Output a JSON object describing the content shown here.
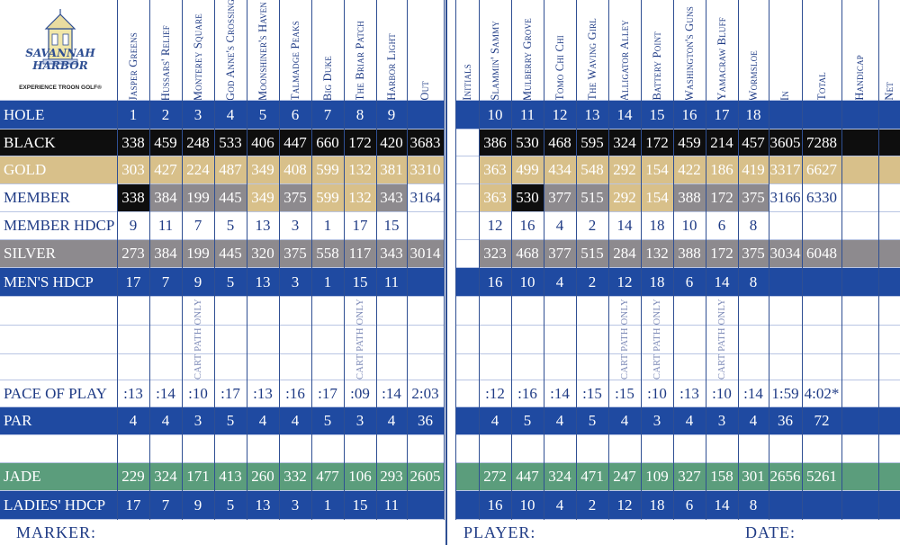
{
  "logo": {
    "brand": "SAVANNAH HARBOR",
    "tagline": "EXPERIENCE TROON GOLF®"
  },
  "colors": {
    "blue": "#1f4aa1",
    "black": "#0e0e0e",
    "gold": "#d8c08a",
    "silver": "#8d8a8e",
    "jade": "#5b9d7c",
    "headerText": "#1f3b85"
  },
  "front_headers": [
    "Jasper Greens",
    "Hussars' Relief",
    "Monterey Square",
    "God Anne's Crossing",
    "Moonshiner's Haven",
    "Talmadge Peaks",
    "Big Duke",
    "The Briar Patch",
    "Harbor Light",
    "Out"
  ],
  "back_headers": [
    "Initials",
    "Slammin' Sammy",
    "Mulberry Grove",
    "Tomo Chi Chi",
    "The Waving Girl",
    "Alligator Alley",
    "Battery Point",
    "Washington's Guns",
    "Yamacraw Bluff",
    "Wormsloe",
    "In",
    "Total",
    "Handicap",
    "Net"
  ],
  "rows": [
    {
      "label": "HOLE",
      "style": "blue",
      "front": [
        "1",
        "2",
        "3",
        "4",
        "5",
        "6",
        "7",
        "8",
        "9",
        ""
      ],
      "back": [
        "",
        "10",
        "11",
        "12",
        "13",
        "14",
        "15",
        "16",
        "17",
        "18",
        "",
        "",
        "",
        ""
      ]
    },
    {
      "label": "BLACK",
      "style": "black",
      "front": [
        "338",
        "459",
        "248",
        "533",
        "406",
        "447",
        "660",
        "172",
        "420",
        "3683"
      ],
      "back": [
        "",
        "386",
        "530",
        "468",
        "595",
        "324",
        "172",
        "459",
        "214",
        "457",
        "3605",
        "7288",
        "",
        ""
      ]
    },
    {
      "label": "GOLD",
      "style": "gold",
      "front": [
        "303",
        "427",
        "224",
        "487",
        "349",
        "408",
        "599",
        "132",
        "381",
        "3310"
      ],
      "back": [
        "",
        "363",
        "499",
        "434",
        "548",
        "292",
        "154",
        "422",
        "186",
        "419",
        "3317",
        "6627",
        "",
        ""
      ]
    },
    {
      "label": "MEMBER",
      "style": "member",
      "front": [
        "338",
        "384",
        "199",
        "445",
        "349",
        "375",
        "599",
        "132",
        "343",
        "3164"
      ],
      "back": [
        "",
        "363",
        "530",
        "377",
        "515",
        "292",
        "154",
        "388",
        "172",
        "375",
        "3166",
        "6330",
        "",
        ""
      ]
    },
    {
      "label": "MEMBER HDCP",
      "style": "white",
      "front": [
        "9",
        "11",
        "7",
        "5",
        "13",
        "3",
        "1",
        "17",
        "15",
        ""
      ],
      "back": [
        "",
        "12",
        "16",
        "4",
        "2",
        "14",
        "18",
        "10",
        "6",
        "8",
        "",
        "",
        "",
        ""
      ]
    },
    {
      "label": "SILVER",
      "style": "silver",
      "front": [
        "273",
        "384",
        "199",
        "445",
        "320",
        "375",
        "558",
        "117",
        "343",
        "3014"
      ],
      "back": [
        "",
        "323",
        "468",
        "377",
        "515",
        "284",
        "132",
        "388",
        "172",
        "375",
        "3034",
        "6048",
        "",
        ""
      ]
    },
    {
      "label": "MEN'S HDCP",
      "style": "blue",
      "front": [
        "17",
        "7",
        "9",
        "5",
        "13",
        "3",
        "1",
        "15",
        "11",
        ""
      ],
      "back": [
        "",
        "16",
        "10",
        "4",
        "2",
        "12",
        "18",
        "6",
        "14",
        "8",
        "",
        "",
        "",
        ""
      ]
    },
    {
      "label": "",
      "style": "white",
      "front": [
        "",
        "",
        "",
        "",
        "",
        "",
        "",
        "",
        "",
        ""
      ],
      "back": [
        "",
        "",
        "",
        "",
        "",
        "",
        "",
        "",
        "",
        "",
        "",
        "",
        "",
        ""
      ]
    },
    {
      "label": "",
      "style": "white",
      "front": [
        "",
        "",
        "",
        "",
        "",
        "",
        "",
        "",
        "",
        ""
      ],
      "back": [
        "",
        "",
        "",
        "",
        "",
        "",
        "",
        "",
        "",
        "",
        "",
        "",
        "",
        ""
      ]
    },
    {
      "label": "",
      "style": "white",
      "front": [
        "",
        "",
        "",
        "",
        "",
        "",
        "",
        "",
        "",
        ""
      ],
      "back": [
        "",
        "",
        "",
        "",
        "",
        "",
        "",
        "",
        "",
        "",
        "",
        "",
        "",
        ""
      ]
    },
    {
      "label": "PACE OF PLAY",
      "style": "white",
      "front": [
        ":13",
        ":14",
        ":10",
        ":17",
        ":13",
        ":16",
        ":17",
        ":09",
        ":14",
        "2:03"
      ],
      "back": [
        "",
        ":12",
        ":16",
        ":14",
        ":15",
        ":15",
        ":10",
        ":13",
        ":10",
        ":14",
        "1:59",
        "4:02*",
        "",
        ""
      ]
    },
    {
      "label": "PAR",
      "style": "blue",
      "front": [
        "4",
        "4",
        "3",
        "5",
        "4",
        "4",
        "5",
        "3",
        "4",
        "36"
      ],
      "back": [
        "",
        "4",
        "5",
        "4",
        "5",
        "4",
        "3",
        "4",
        "3",
        "4",
        "36",
        "72",
        "",
        ""
      ]
    },
    {
      "label": "",
      "style": "white",
      "front": [
        "",
        "",
        "",
        "",
        "",
        "",
        "",
        "",
        "",
        ""
      ],
      "back": [
        "",
        "",
        "",
        "",
        "",
        "",
        "",
        "",
        "",
        "",
        "",
        "",
        "",
        ""
      ]
    },
    {
      "label": "JADE",
      "style": "jade",
      "front": [
        "229",
        "324",
        "171",
        "413",
        "260",
        "332",
        "477",
        "106",
        "293",
        "2605"
      ],
      "back": [
        "",
        "272",
        "447",
        "324",
        "471",
        "247",
        "109",
        "327",
        "158",
        "301",
        "2656",
        "5261",
        "",
        ""
      ]
    },
    {
      "label": "LADIES' HDCP",
      "style": "blue",
      "front": [
        "17",
        "7",
        "9",
        "5",
        "13",
        "3",
        "1",
        "15",
        "11",
        ""
      ],
      "back": [
        "",
        "16",
        "10",
        "4",
        "2",
        "12",
        "18",
        "6",
        "14",
        "8",
        "",
        "",
        "",
        ""
      ]
    }
  ],
  "cart_path": {
    "text": "CART PATH ONLY",
    "front_holes": [
      3,
      8
    ],
    "back_holes": [
      14,
      15,
      17
    ]
  },
  "footer": {
    "marker": "MARKER:",
    "player": "PLAYER:",
    "date": "DATE:"
  }
}
